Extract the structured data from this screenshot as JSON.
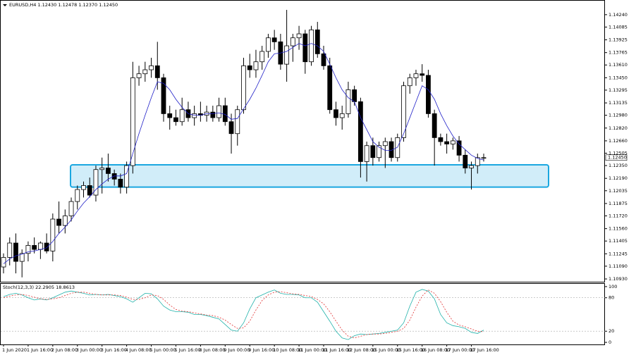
{
  "chart_data": [
    {
      "type": "candlestick",
      "title": "EURUSD,H4  1.12430 1.12478 1.12370 1.12450",
      "categories": [
        "1 Jun 2020",
        null,
        null,
        null,
        "1 Jun 16:00",
        null,
        null,
        null,
        "2 Jun 08:00",
        null,
        null,
        null,
        "3 Jun 00:00",
        null,
        null,
        null,
        "3 Jun 16:00",
        null,
        null,
        null,
        "4 Jun 08:00",
        null,
        null,
        null,
        "5 Jun 00:00",
        null,
        null,
        null,
        "5 Jun 16:00",
        null,
        null,
        null,
        "8 Jun 08:00",
        null,
        null,
        null,
        "9 Jun 00:00",
        null,
        null,
        null,
        "9 Jun 16:00",
        null,
        null,
        null,
        "10 Jun 08:00",
        null,
        null,
        null,
        "11 Jun 00:00",
        null,
        null,
        null,
        "11 Jun 16:00",
        null,
        null,
        null,
        "12 Jun 08:00",
        null,
        null,
        null,
        "15 Jun 00:00",
        null,
        null,
        null,
        "15 Jun 16:00",
        null,
        null,
        null,
        "16 Jun 08:00",
        null,
        null,
        null,
        "17 Jun 00:00",
        null,
        null,
        null,
        "17 Jun 16:00",
        null,
        null
      ],
      "open": [
        1.1108,
        1.112,
        1.1138,
        1.1115,
        1.1125,
        1.1135,
        1.113,
        1.1138,
        1.1128,
        1.1168,
        1.116,
        1.1172,
        1.119,
        1.1205,
        1.121,
        1.1198,
        1.123,
        1.1232,
        1.1225,
        1.1218,
        1.1208,
        1.1235,
        1.1345,
        1.135,
        1.1355,
        1.136,
        1.1345,
        1.13,
        1.1295,
        1.129,
        1.1305,
        1.1295,
        1.13,
        1.1298,
        1.1302,
        1.1295,
        1.131,
        1.129,
        1.1275,
        1.1305,
        1.136,
        1.1355,
        1.1365,
        1.1378,
        1.1395,
        1.139,
        1.1362,
        1.1385,
        1.1395,
        1.14,
        1.1365,
        1.1405,
        1.1375,
        1.136,
        1.1305,
        1.1295,
        1.13,
        1.133,
        1.1315,
        1.124,
        1.126,
        1.1245,
        1.126,
        1.1265,
        1.1245,
        1.127,
        1.1335,
        1.1345,
        1.135,
        1.1348,
        1.13,
        1.127,
        1.1265,
        1.1262,
        1.1266,
        1.1248,
        1.1232,
        1.1235,
        1.1245
      ],
      "high": [
        1.1125,
        1.1145,
        1.115,
        1.113,
        1.114,
        1.1145,
        1.114,
        1.115,
        1.1175,
        1.119,
        1.118,
        1.1195,
        1.121,
        1.1215,
        1.122,
        1.1235,
        1.1245,
        1.125,
        1.123,
        1.1225,
        1.124,
        1.1365,
        1.136,
        1.1365,
        1.137,
        1.139,
        1.135,
        1.131,
        1.1305,
        1.132,
        1.1315,
        1.131,
        1.1315,
        1.131,
        1.131,
        1.132,
        1.132,
        1.13,
        1.131,
        1.137,
        1.1375,
        1.138,
        1.1385,
        1.14,
        1.1405,
        1.14,
        1.143,
        1.14,
        1.141,
        1.1405,
        1.141,
        1.1415,
        1.1385,
        1.137,
        1.1315,
        1.131,
        1.134,
        1.1335,
        1.132,
        1.1265,
        1.127,
        1.1265,
        1.127,
        1.127,
        1.1275,
        1.134,
        1.135,
        1.1355,
        1.1362,
        1.1355,
        1.1305,
        1.1275,
        1.1275,
        1.127,
        1.1272,
        1.1255,
        1.124,
        1.125,
        1.125
      ],
      "low": [
        1.11,
        1.111,
        1.11,
        1.1095,
        1.1115,
        1.1125,
        1.1118,
        1.1125,
        1.1115,
        1.115,
        1.115,
        1.1165,
        1.118,
        1.1195,
        1.1195,
        1.119,
        1.12,
        1.1215,
        1.121,
        1.12,
        1.12,
        1.1225,
        1.1335,
        1.134,
        1.1345,
        1.133,
        1.129,
        1.128,
        1.1285,
        1.1285,
        1.129,
        1.1285,
        1.129,
        1.129,
        1.129,
        1.129,
        1.1285,
        1.125,
        1.126,
        1.13,
        1.1345,
        1.1345,
        1.1355,
        1.137,
        1.138,
        1.1355,
        1.134,
        1.1365,
        1.138,
        1.135,
        1.136,
        1.137,
        1.1355,
        1.13,
        1.1285,
        1.128,
        1.1295,
        1.131,
        1.122,
        1.1215,
        1.1235,
        1.124,
        1.1232,
        1.124,
        1.124,
        1.1265,
        1.1325,
        1.1335,
        1.134,
        1.1295,
        1.1235,
        1.126,
        1.125,
        1.1255,
        1.124,
        1.1225,
        1.1205,
        1.1225,
        1.124
      ],
      "close": [
        1.112,
        1.1138,
        1.1115,
        1.1125,
        1.1135,
        1.113,
        1.1138,
        1.1128,
        1.1168,
        1.116,
        1.1172,
        1.119,
        1.1205,
        1.121,
        1.1198,
        1.123,
        1.1232,
        1.1225,
        1.1218,
        1.1208,
        1.1235,
        1.1345,
        1.135,
        1.1355,
        1.136,
        1.1345,
        1.13,
        1.1295,
        1.129,
        1.1305,
        1.1295,
        1.13,
        1.1298,
        1.1302,
        1.1295,
        1.131,
        1.129,
        1.1275,
        1.1305,
        1.136,
        1.1355,
        1.1365,
        1.1378,
        1.1395,
        1.139,
        1.1362,
        1.1385,
        1.1395,
        1.14,
        1.1365,
        1.1405,
        1.1375,
        1.136,
        1.1305,
        1.1295,
        1.13,
        1.133,
        1.1315,
        1.124,
        1.126,
        1.1245,
        1.126,
        1.1265,
        1.1245,
        1.127,
        1.1335,
        1.1345,
        1.135,
        1.1348,
        1.13,
        1.127,
        1.1265,
        1.1262,
        1.1266,
        1.1248,
        1.1232,
        1.1235,
        1.1245,
        1.1245
      ],
      "series": [
        {
          "color": "#2020c8",
          "values": [
            1.1112,
            1.1118,
            1.1122,
            1.1124,
            1.1127,
            1.1128,
            1.113,
            1.1132,
            1.114,
            1.115,
            1.1158,
            1.1167,
            1.1178,
            1.1188,
            1.1196,
            1.1205,
            1.1212,
            1.1218,
            1.1222,
            1.1222,
            1.1225,
            1.125,
            1.1275,
            1.1298,
            1.132,
            1.134,
            1.1338,
            1.133,
            1.1318,
            1.1308,
            1.13,
            1.1298,
            1.1298,
            1.13,
            1.13,
            1.1301,
            1.1299,
            1.1293,
            1.1294,
            1.1306,
            1.1318,
            1.1332,
            1.1348,
            1.1365,
            1.1375,
            1.1376,
            1.1378,
            1.1383,
            1.1388,
            1.1385,
            1.1388,
            1.1385,
            1.1378,
            1.1362,
            1.1345,
            1.133,
            1.132,
            1.1315,
            1.1295,
            1.128,
            1.1265,
            1.1258,
            1.1254,
            1.1254,
            1.1258,
            1.1275,
            1.1295,
            1.1315,
            1.1335,
            1.133,
            1.1318,
            1.13,
            1.1285,
            1.1272,
            1.1262,
            1.1255,
            1.1248,
            1.1244,
            1.1242
          ]
        }
      ],
      "zone": {
        "top": 1.1236,
        "bottom": 1.1208,
        "color": "#1aa7e0"
      },
      "last": {
        "value": 1.1245,
        "label": "1.12450"
      },
      "ylim": [
        1.10895,
        1.14415
      ],
      "yticks": [
        {
          "value": 1.1424,
          "label": "1.14240"
        },
        1.14085,
        1.13925,
        1.13765,
        {
          "value": 1.1361,
          "label": "1.13610"
        },
        {
          "value": 1.1345,
          "label": "1.13450"
        },
        1.13295,
        1.13135,
        {
          "value": 1.1298,
          "label": "1.12980"
        },
        {
          "value": 1.1282,
          "label": "1.12820"
        },
        {
          "value": 1.1266,
          "label": "1.12660"
        },
        1.12505,
        {
          "value": 1.1235,
          "label": "1.12350"
        },
        {
          "value": 1.1219,
          "label": "1.12190"
        },
        1.12035,
        1.11875,
        {
          "value": 1.1172,
          "label": "1.11720"
        },
        {
          "value": 1.1156,
          "label": "1.11560"
        },
        1.11405,
        1.11245,
        {
          "value": 1.1109,
          "label": "1.11090"
        },
        {
          "value": 1.1093,
          "label": "1.10930"
        }
      ]
    },
    {
      "type": "line",
      "title": "Stoch(12,3,3) 22.2905 18.8613",
      "series": [
        {
          "color": "#20b2aa",
          "values": [
            82,
            86,
            88,
            85,
            80,
            76,
            78,
            76,
            80,
            85,
            90,
            92,
            90,
            88,
            85,
            86,
            85,
            86,
            84,
            82,
            78,
            72,
            80,
            88,
            87,
            78,
            65,
            58,
            55,
            55,
            54,
            50,
            50,
            48,
            45,
            42,
            32,
            22,
            20,
            35,
            60,
            80,
            85,
            90,
            94,
            88,
            86,
            86,
            85,
            80,
            80,
            72,
            55,
            38,
            20,
            8,
            5,
            12,
            15,
            14,
            15,
            16,
            18,
            20,
            22,
            35,
            65,
            90,
            95,
            92,
            78,
            50,
            35,
            30,
            28,
            25,
            18,
            16,
            22
          ]
        },
        {
          "color": "#e03030",
          "dashed": true,
          "values": [
            80,
            83,
            85,
            86,
            84,
            81,
            78,
            77,
            78,
            80,
            84,
            88,
            90,
            90,
            88,
            86,
            85,
            85,
            85,
            84,
            81,
            77,
            77,
            80,
            85,
            84,
            77,
            67,
            59,
            56,
            55,
            53,
            51,
            49,
            48,
            45,
            40,
            32,
            25,
            26,
            38,
            58,
            75,
            85,
            90,
            91,
            89,
            87,
            86,
            84,
            82,
            77,
            69,
            55,
            38,
            22,
            11,
            8,
            11,
            14,
            15,
            15,
            16,
            18,
            20,
            25,
            40,
            63,
            83,
            94,
            88,
            73,
            54,
            38,
            31,
            28,
            24,
            20,
            19
          ]
        }
      ],
      "levels": [
        80,
        20
      ],
      "ylim": [
        -3.7,
        104.9
      ],
      "yticks": [
        100,
        80,
        20,
        0
      ]
    }
  ]
}
